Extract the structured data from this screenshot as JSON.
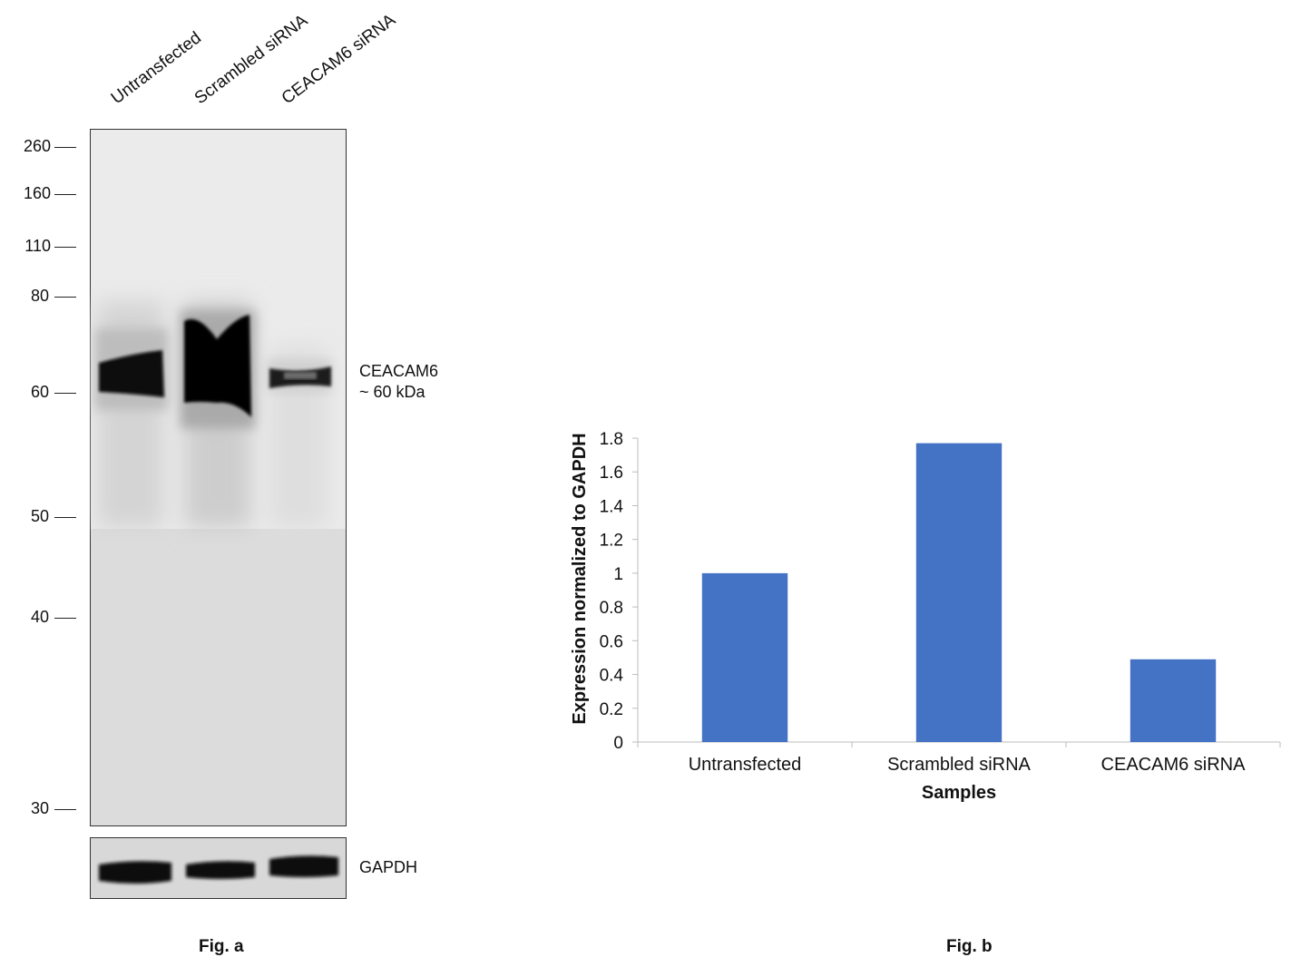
{
  "figure_a": {
    "caption": "Fig. a",
    "lanes": [
      "Untransfected",
      "Scrambled siRNA",
      "CEACAM6 siRNA"
    ],
    "markers": [
      "260",
      "160",
      "110",
      "80",
      "60",
      "50",
      "40",
      "30"
    ],
    "target_label_line1": "CEACAM6",
    "target_label_line2": "~ 60 kDa",
    "loading_control": "GAPDH"
  },
  "figure_b": {
    "caption": "Fig. b"
  },
  "chart_data": {
    "type": "bar",
    "categories": [
      "Untransfected",
      "Scrambled siRNA",
      "CEACAM6 siRNA"
    ],
    "values": [
      1.0,
      1.77,
      0.49
    ],
    "xlabel": "Samples",
    "ylabel": "Expression normalized to GAPDH",
    "ylim": [
      0,
      1.8
    ],
    "yticks": [
      "0",
      "0.2",
      "0.4",
      "0.6",
      "0.8",
      "1",
      "1.2",
      "1.4",
      "1.6",
      "1.8"
    ],
    "bar_color": "#4472C4",
    "grid": false
  }
}
